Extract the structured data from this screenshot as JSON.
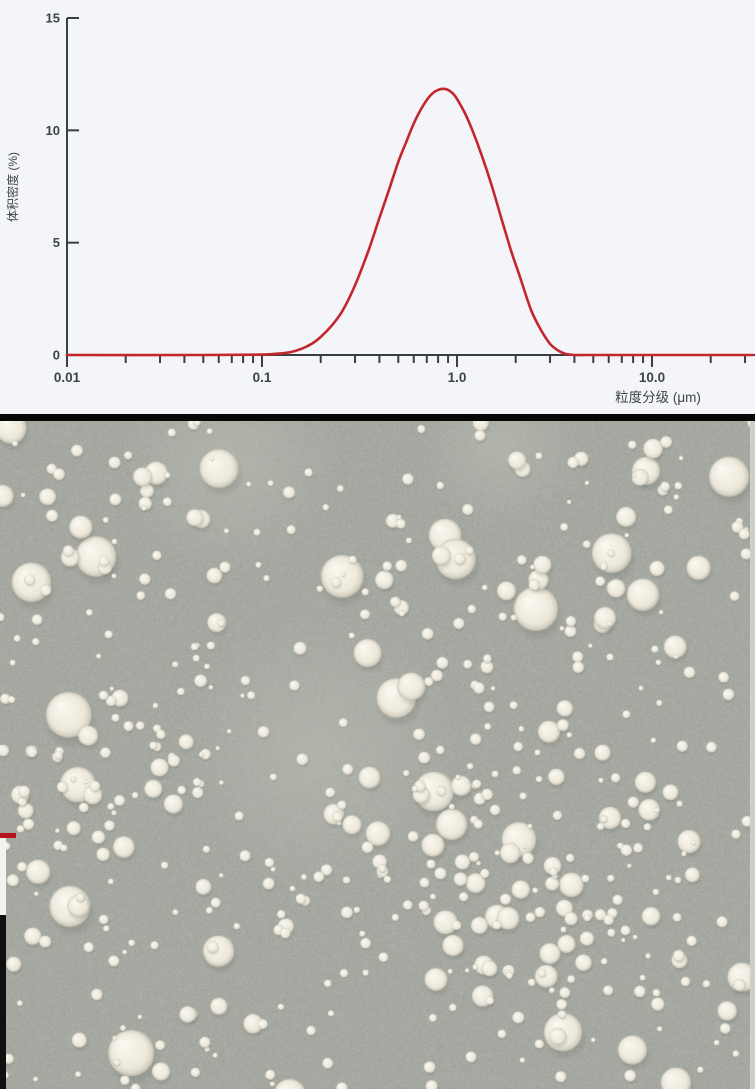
{
  "chart": {
    "ylabel": "体积密度 (%)",
    "xlabel": "粒度分级 (μm)",
    "bg_color": "#f4f5f8",
    "axis_color": "#3b3e43",
    "label_color": "#3e4249",
    "curve_color": "#c4262d",
    "y_ticks": [
      {
        "value": 0,
        "label": "0"
      },
      {
        "value": 5,
        "label": "5"
      },
      {
        "value": 10,
        "label": "10"
      },
      {
        "value": 15,
        "label": "15"
      }
    ],
    "x_major_ticks": [
      {
        "value": 0.01,
        "label": "0.01"
      },
      {
        "value": 0.1,
        "label": "0.1"
      },
      {
        "value": 1,
        "label": "1.0"
      },
      {
        "value": 10,
        "label": "10.0"
      }
    ]
  },
  "chart_data": {
    "type": "line",
    "title": "",
    "xlabel": "粒度分级 (μm)",
    "ylabel": "体积密度 (%)",
    "xscale": "log",
    "xlim": [
      0.01,
      33
    ],
    "ylim": [
      0,
      15
    ],
    "grid": false,
    "legend": "none",
    "peak": {
      "x": 0.85,
      "y": 11.85
    },
    "series": [
      {
        "name": "体积密度",
        "x": [
          0.01,
          0.05,
          0.1,
          0.12,
          0.14,
          0.16,
          0.18,
          0.2,
          0.23,
          0.26,
          0.3,
          0.35,
          0.4,
          0.45,
          0.5,
          0.55,
          0.6,
          0.65,
          0.7,
          0.75,
          0.8,
          0.85,
          0.9,
          0.95,
          1.0,
          1.1,
          1.2,
          1.35,
          1.5,
          1.7,
          1.9,
          2.1,
          2.4,
          2.7,
          3.0,
          3.3,
          3.6,
          4.0,
          4.5,
          10.0,
          33.0
        ],
        "y": [
          0,
          0,
          0.02,
          0.06,
          0.13,
          0.28,
          0.5,
          0.8,
          1.35,
          2.0,
          3.1,
          4.6,
          6.1,
          7.4,
          8.6,
          9.5,
          10.3,
          10.9,
          11.35,
          11.65,
          11.8,
          11.85,
          11.8,
          11.65,
          11.4,
          10.75,
          10.0,
          8.8,
          7.6,
          6.0,
          4.6,
          3.5,
          2.0,
          1.1,
          0.5,
          0.2,
          0.05,
          0,
          0,
          0,
          0
        ]
      }
    ]
  },
  "micrograph": {
    "description": "SEM-style photo of white spherical powder particles on gray background",
    "background_color": "#a6a9a1",
    "particle_base_color": "#ece9dc",
    "particle_highlight_color": "#faf8f0",
    "particle_edge_color": "#b8b7aa",
    "shadow_color": "rgba(78,80,74,0.38)",
    "seed": 1337,
    "counts": {
      "large": 28,
      "medium": 110,
      "small": 430
    },
    "right_strip_color": "#cdd0ca",
    "left_red_line_color": "#b5141c",
    "left_white_strip_color": "#f3f3f1",
    "left_black_strip_color": "#101010"
  },
  "divider": {
    "color": "#070707"
  }
}
